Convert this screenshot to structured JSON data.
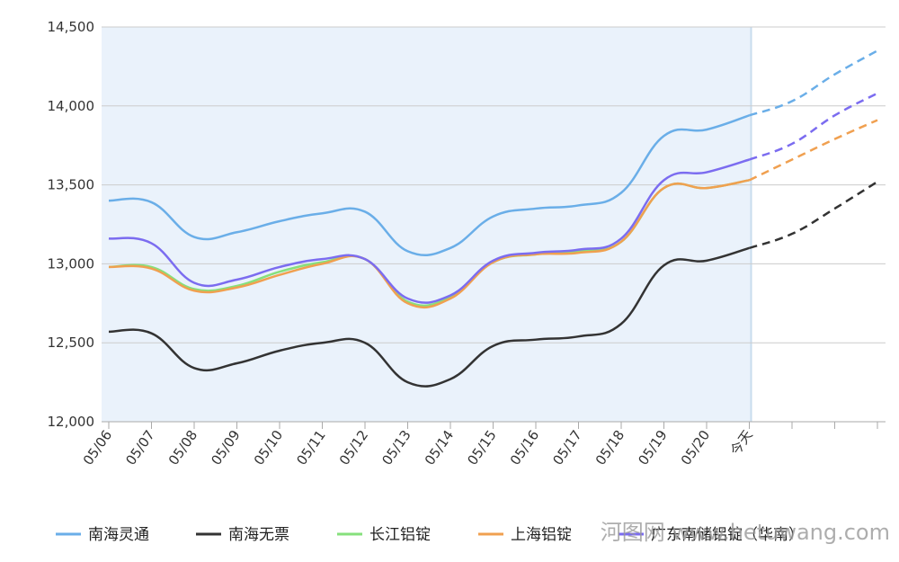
{
  "chart_data": {
    "type": "line",
    "categories": [
      "05/06",
      "05/07",
      "05/08",
      "05/09",
      "05/10",
      "05/11",
      "05/12",
      "05/13",
      "05/14",
      "05/15",
      "05/16",
      "05/17",
      "05/18",
      "05/19",
      "05/20",
      "今天",
      null,
      null,
      null
    ],
    "series": [
      {
        "name": "南海灵通",
        "color": "#6aaee8",
        "values": [
          13400,
          13390,
          13170,
          13200,
          13270,
          13320,
          13330,
          13080,
          13100,
          13300,
          13350,
          13370,
          13450,
          13810,
          13850,
          13940,
          14030,
          14200,
          14350
        ]
      },
      {
        "name": "南海无票",
        "color": "#333333",
        "values": [
          12570,
          12560,
          12340,
          12370,
          12450,
          12500,
          12500,
          12250,
          12270,
          12480,
          12520,
          12540,
          12620,
          12990,
          13020,
          13100,
          13190,
          13350,
          13520
        ]
      },
      {
        "name": "长江铝锭",
        "color": "#86e07c",
        "values": [
          12980,
          12980,
          12840,
          12860,
          12950,
          13010,
          13030,
          12760,
          12790,
          13010,
          13060,
          13080,
          13140,
          13480,
          13480,
          13530,
          null,
          null,
          null
        ]
      },
      {
        "name": "上海铝锭",
        "color": "#f0a050",
        "values": [
          12980,
          12970,
          12830,
          12850,
          12930,
          13000,
          13030,
          12750,
          12780,
          13010,
          13060,
          13070,
          13140,
          13480,
          13480,
          13530,
          13660,
          13790,
          13910
        ]
      },
      {
        "name": "广东南储铝锭（华南）",
        "color": "#7b6cf0",
        "values": [
          13160,
          13130,
          12880,
          12900,
          12980,
          13030,
          13030,
          12780,
          12800,
          13020,
          13070,
          13090,
          13160,
          13530,
          13580,
          13660,
          13760,
          13940,
          14080
        ]
      }
    ],
    "ylim": [
      12000,
      14500
    ],
    "yticks": [
      {
        "value": 12000,
        "label": "12,000"
      },
      {
        "value": 12500,
        "label": "12,500"
      },
      {
        "value": 13000,
        "label": "13,000"
      },
      {
        "value": 13500,
        "label": "13,500"
      },
      {
        "value": 14000,
        "label": "14,000"
      },
      {
        "value": 14500,
        "label": "14,500"
      }
    ],
    "grid": true,
    "dashed_after": 15,
    "legend": "bottom",
    "watermark": "河图网 www.hetuwang.com"
  }
}
